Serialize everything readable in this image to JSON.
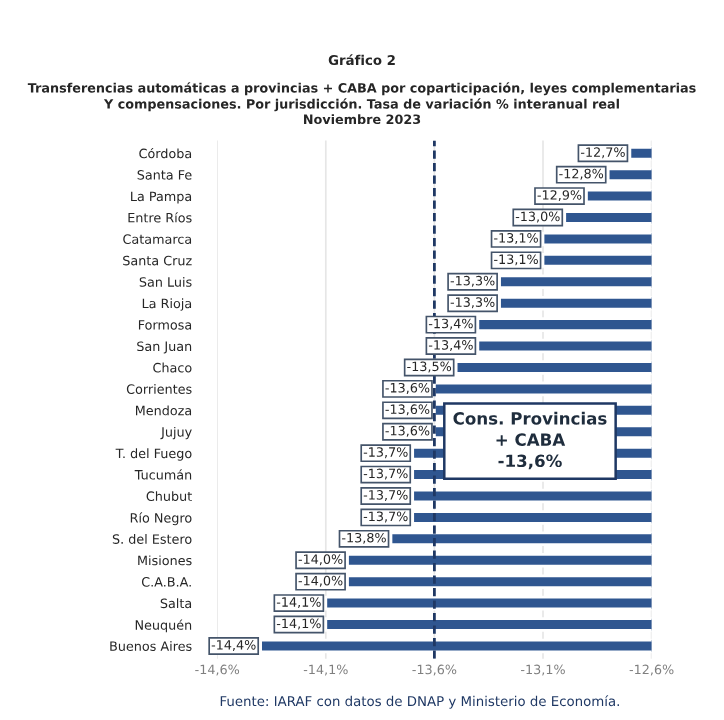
{
  "chart_data": {
    "type": "bar",
    "orientation": "horizontal",
    "title": "Gráfico 2",
    "subtitle": "Transferencias automáticas a provincias + CABA por coparticipación, leyes complementarias\nY compensaciones. Por jurisdicción. Tasa de variación % interanual real\nNoviembre 2023",
    "categories": [
      "Córdoba",
      "Santa Fe",
      "La Pampa",
      "Entre Ríos",
      "Catamarca",
      "Santa Cruz",
      "San Luis",
      "La Rioja",
      "Formosa",
      "San Juan",
      "Chaco",
      "Corrientes",
      "Mendoza",
      "Jujuy",
      "T. del Fuego",
      "Tucumán",
      "Chubut",
      "Río Negro",
      "S. del Estero",
      "Misiones",
      "C.A.B.A.",
      "Salta",
      "Neuquén",
      "Buenos Aires"
    ],
    "series": [
      {
        "color": "#2f5690",
        "values": [
          -12.7,
          -12.8,
          -12.9,
          -13.0,
          -13.1,
          -13.1,
          -13.3,
          -13.3,
          -13.4,
          -13.4,
          -13.5,
          -13.6,
          -13.6,
          -13.6,
          -13.7,
          -13.7,
          -13.7,
          -13.7,
          -13.8,
          -14.0,
          -14.0,
          -14.1,
          -14.1,
          -14.4
        ],
        "value_labels": [
          "-12,7%",
          "-12,8%",
          "-12,9%",
          "-13,0%",
          "-13,1%",
          "-13,1%",
          "-13,3%",
          "-13,3%",
          "-13,4%",
          "-13,4%",
          "-13,5%",
          "-13,6%",
          "-13,6%",
          "-13,6%",
          "-13,7%",
          "-13,7%",
          "-13,7%",
          "-13,7%",
          "-13,8%",
          "-14,0%",
          "-14,0%",
          "-14,1%",
          "-14,1%",
          "-14,4%"
        ]
      }
    ],
    "xlim": [
      -14.6,
      -12.6
    ],
    "xticks": [
      {
        "value": -14.6,
        "label": "-14,6%"
      },
      {
        "value": -14.1,
        "label": "-14,1%"
      },
      {
        "value": -13.6,
        "label": "-13,6%"
      },
      {
        "value": -13.1,
        "label": "-13,1%"
      },
      {
        "value": -12.6,
        "label": "-12,6%"
      }
    ],
    "grid": "x",
    "ref_lines": [
      {
        "axis": "x",
        "value": -13.6,
        "label": "Cons. Provincias\n+ CABA\n-13,6%",
        "color": "#1f3864",
        "line_style": "dashed"
      }
    ],
    "annotations": [
      "Fuente: IARAF con datos de DNAP y Ministerio de Economía."
    ]
  }
}
